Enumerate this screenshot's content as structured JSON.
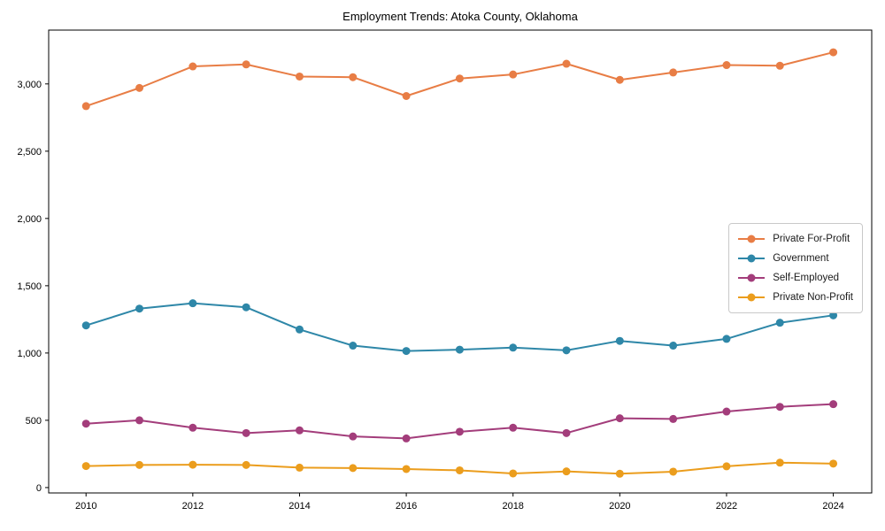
{
  "title": "Employment Trends: Atoka County, Oklahoma",
  "chart_data": {
    "type": "line",
    "title": "Employment Trends: Atoka County, Oklahoma",
    "xlabel": "",
    "ylabel": "",
    "x": [
      2010,
      2011,
      2012,
      2013,
      2014,
      2015,
      2016,
      2017,
      2018,
      2019,
      2020,
      2021,
      2022,
      2023,
      2024
    ],
    "series": [
      {
        "name": "Private For-Profit",
        "color": "#e87d45",
        "values": [
          2835,
          2970,
          3130,
          3145,
          3055,
          3050,
          2910,
          3040,
          3070,
          3150,
          3030,
          3085,
          3140,
          3135,
          3235
        ]
      },
      {
        "name": "Government",
        "color": "#2e87a8",
        "values": [
          1205,
          1330,
          1370,
          1340,
          1175,
          1055,
          1015,
          1025,
          1040,
          1020,
          1090,
          1055,
          1105,
          1225,
          1280
        ]
      },
      {
        "name": "Self-Employed",
        "color": "#a33d7b",
        "values": [
          475,
          500,
          445,
          405,
          425,
          380,
          365,
          415,
          445,
          405,
          515,
          510,
          565,
          600,
          620
        ]
      },
      {
        "name": "Private Non-Profit",
        "color": "#eb9d1d",
        "values": [
          160,
          168,
          170,
          168,
          148,
          145,
          138,
          128,
          105,
          120,
          103,
          118,
          158,
          185,
          178
        ]
      }
    ],
    "xticks": [
      2010,
      2012,
      2014,
      2016,
      2018,
      2020,
      2022,
      2024
    ],
    "xtick_labels": [
      "2010",
      "2012",
      "2014",
      "2016",
      "2018",
      "2020",
      "2022",
      "2024"
    ],
    "yticks": [
      0,
      500,
      1000,
      1500,
      2000,
      2500,
      3000
    ],
    "ytick_labels": [
      "0",
      "500",
      "1,000",
      "1,500",
      "2,000",
      "2,500",
      "3,000"
    ],
    "xlim": [
      2009.3,
      2024.72
    ],
    "ylim": [
      -40,
      3400
    ],
    "grid": false,
    "legend_position": "center right",
    "marker": "circle",
    "line_width": 2,
    "marker_radius": 4.5,
    "axis_color": "#000000",
    "background_color": "#ffffff"
  }
}
